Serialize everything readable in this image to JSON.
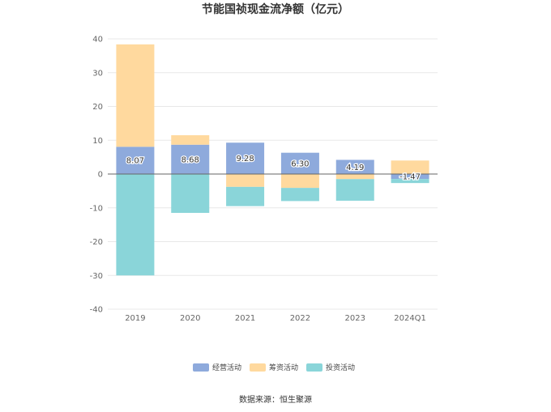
{
  "chart_data": {
    "type": "bar",
    "stacked": true,
    "title": "节能国祯现金流净额（亿元）",
    "categories": [
      "2019",
      "2020",
      "2021",
      "2022",
      "2023",
      "2024Q1"
    ],
    "series": [
      {
        "name": "经营活动",
        "color": "#8eaadc",
        "values": [
          8.07,
          8.68,
          9.28,
          6.3,
          4.19,
          -1.47
        ],
        "labels": [
          "8.07",
          "8.68",
          "9.28",
          "6.30",
          "4.19",
          "-1.47"
        ]
      },
      {
        "name": "筹资活动",
        "color": "#ffd99e",
        "values": [
          30.3,
          2.8,
          -3.8,
          -4.1,
          -1.5,
          4.0
        ]
      },
      {
        "name": "投资活动",
        "color": "#8ad5d9",
        "values": [
          -30.0,
          -11.5,
          -5.7,
          -3.9,
          -6.4,
          -1.2
        ]
      }
    ],
    "ylim": [
      -40,
      40
    ],
    "yticks": [
      40,
      30,
      20,
      10,
      0,
      -10,
      -20,
      -30,
      -40
    ],
    "grid": true,
    "legend_position": "bottom",
    "source": "数据来源：恒生聚源"
  }
}
